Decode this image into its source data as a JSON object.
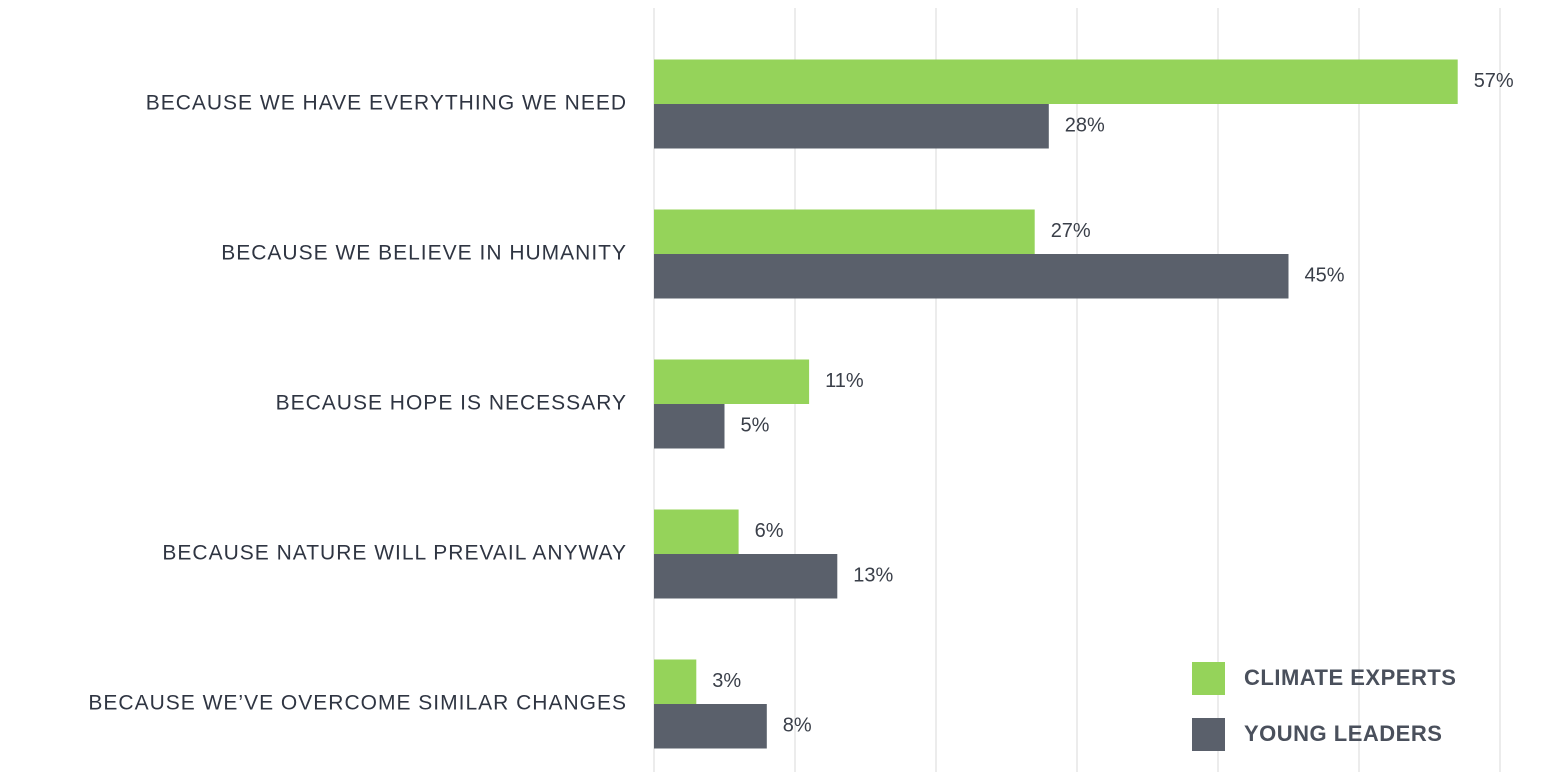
{
  "chart_data": {
    "type": "barh",
    "categories": [
      "BECAUSE WE HAVE EVERYTHING WE NEED",
      "BECAUSE WE BELIEVE IN HUMANITY",
      "BECAUSE HOPE IS NECESSARY",
      "BECAUSE NATURE WILL PREVAIL ANYWAY",
      "BECAUSE WE’VE OVERCOME SIMILAR CHANGES"
    ],
    "series": [
      {
        "name": "CLIMATE EXPERTS",
        "color": "#95d35a",
        "values": [
          57,
          27,
          11,
          6,
          3
        ],
        "value_labels": [
          "57%",
          "27%",
          "11%",
          "6%",
          "3%"
        ]
      },
      {
        "name": "YOUNG LEADERS",
        "color": "#5a606b",
        "values": [
          28,
          45,
          5,
          13,
          8
        ],
        "value_labels": [
          "28%",
          "45%",
          "5%",
          "13%",
          "8%"
        ]
      }
    ],
    "xlim": [
      0,
      60
    ],
    "xticks": [
      0,
      10,
      20,
      30,
      40,
      50,
      60
    ],
    "grid": true,
    "legend": "lower right"
  }
}
